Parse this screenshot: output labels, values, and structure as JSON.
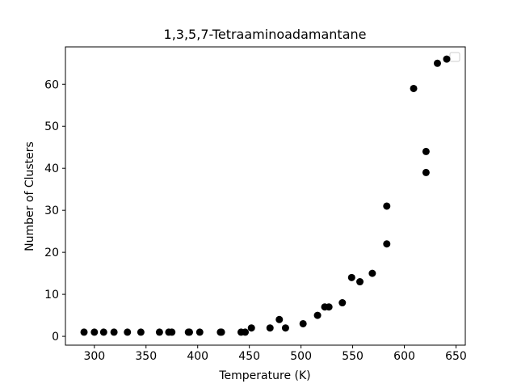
{
  "chart_data": {
    "type": "scatter",
    "title": "1,3,5,7-Tetraaminoadamantane",
    "x_label": "Temperature (K)",
    "y_label": "Number of Clusters",
    "x": [
      290,
      300,
      309,
      319,
      332,
      345,
      363,
      372,
      375,
      391,
      392,
      402,
      422,
      423,
      442,
      446,
      452,
      470,
      479,
      485,
      502,
      516,
      523,
      527,
      540,
      549,
      557,
      569,
      583,
      583,
      609,
      621,
      621,
      632,
      641
    ],
    "values": [
      1,
      1,
      1,
      1,
      1,
      1,
      1,
      1,
      1,
      1,
      1,
      1,
      1,
      1,
      1,
      1,
      2,
      2,
      4,
      2,
      3,
      5,
      7,
      7,
      8,
      14,
      13,
      15,
      31,
      22,
      59,
      44,
      39,
      65,
      66
    ],
    "color": "#000000",
    "xlim": [
      272,
      659
    ],
    "ylim": [
      -2.1,
      68.9
    ],
    "xticks": [
      300,
      350,
      400,
      450,
      500,
      550,
      600,
      650
    ],
    "yticks": [
      0,
      10,
      20,
      30,
      40,
      50,
      60
    ]
  }
}
